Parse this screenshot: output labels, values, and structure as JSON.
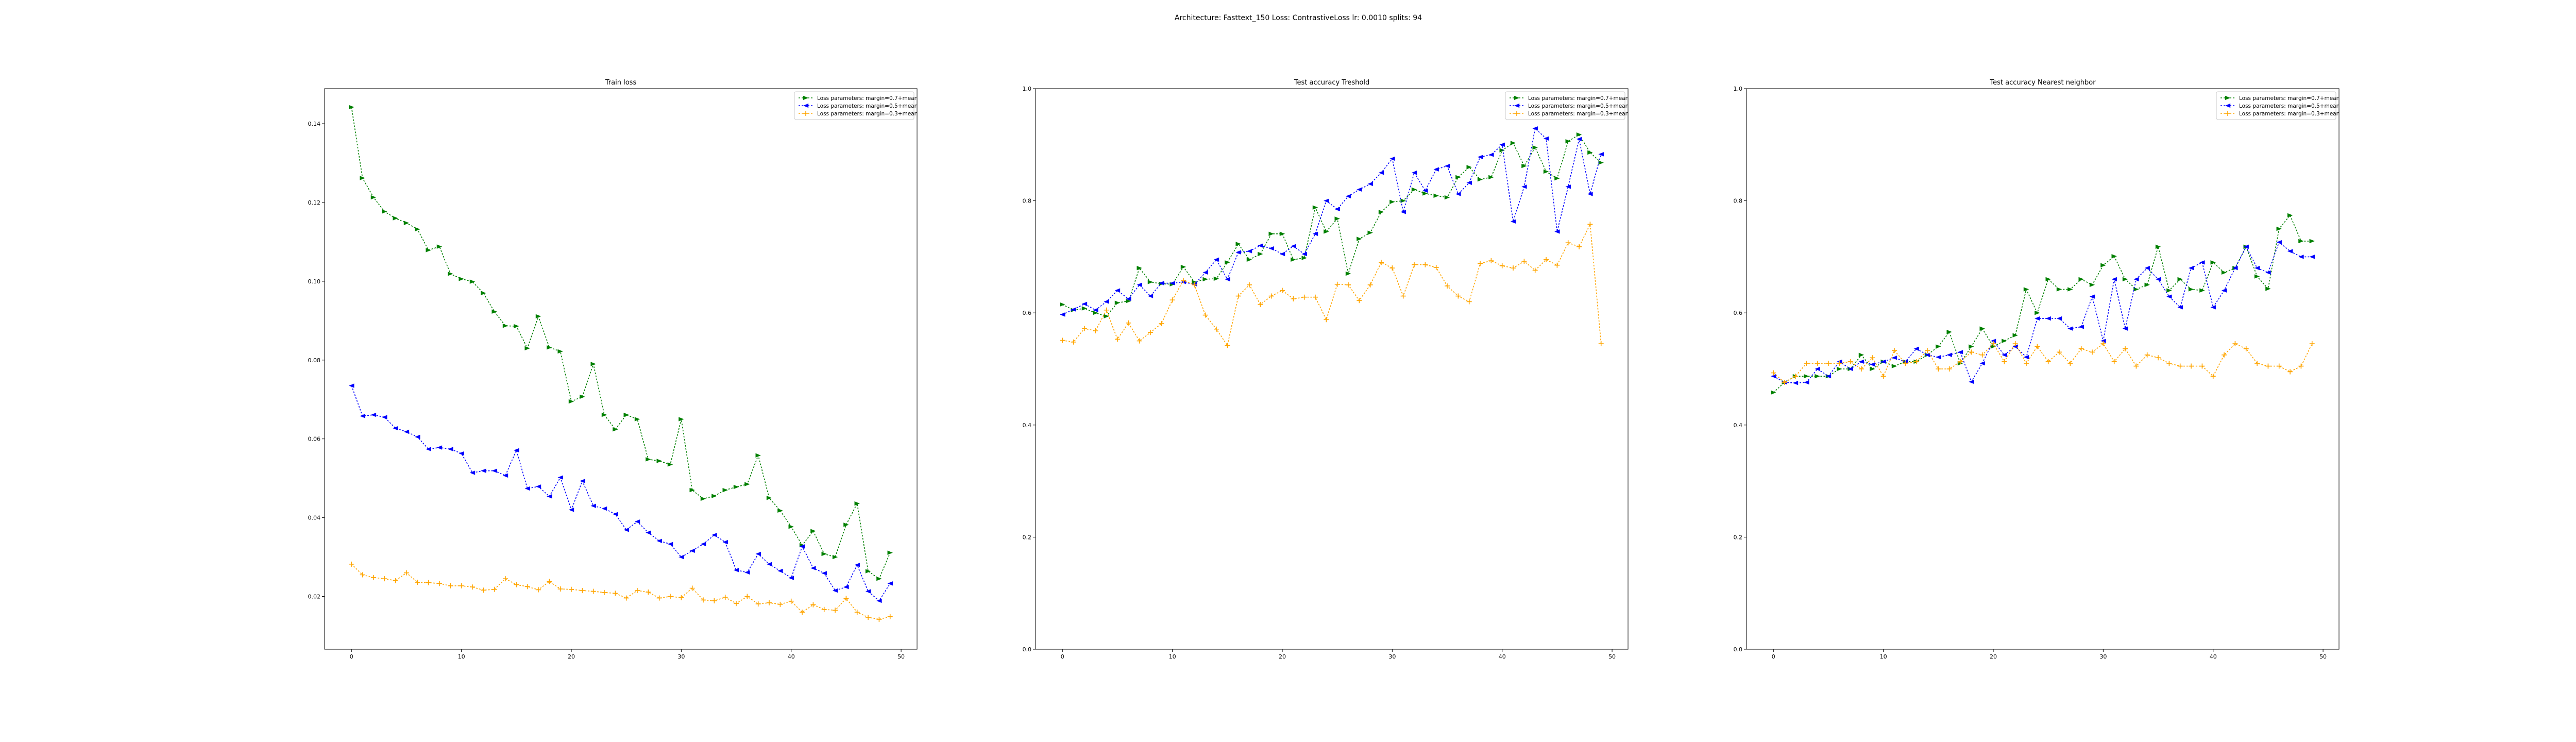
{
  "figure": {
    "suptitle": "Architecture: Fasttext_150 Loss: ContrastiveLoss lr: 0.0010 splits: 94"
  },
  "colors": {
    "green": "#008000",
    "blue": "#0000ff",
    "orange": "#ffa500"
  },
  "chart_data": [
    {
      "type": "line",
      "title": "Train loss",
      "xlabel": "",
      "ylabel": "",
      "xlim": [
        -2.45,
        51.45
      ],
      "ylim": [
        0.0066,
        0.1489
      ],
      "xticks": [
        0,
        10,
        20,
        30,
        40,
        50
      ],
      "yticks": [
        0.02,
        0.04,
        0.06,
        0.08,
        0.1,
        0.12,
        0.14
      ],
      "ytick_labels": [
        "0.02",
        "0.04",
        "0.06",
        "0.08",
        "0.10",
        "0.12",
        "0.14"
      ],
      "grid": false,
      "legend": "top-right",
      "series": [
        {
          "name": "Loss parameters: margin=0.7+mean",
          "color": "green",
          "values": [
            0.1442,
            0.1262,
            0.1213,
            0.1177,
            0.116,
            0.1148,
            0.1132,
            0.1079,
            0.1088,
            0.1019,
            0.1006,
            0.0999,
            0.097,
            0.0923,
            0.0887,
            0.0886,
            0.083,
            0.0911,
            0.0832,
            0.0822,
            0.0695,
            0.0707,
            0.079,
            0.0661,
            0.0624,
            0.0661,
            0.065,
            0.0548,
            0.0544,
            0.0535,
            0.065,
            0.047,
            0.0448,
            0.0455,
            0.047,
            0.0478,
            0.0485,
            0.0558,
            0.045,
            0.0418,
            0.0377,
            0.033,
            0.0366,
            0.0308,
            0.03,
            0.0382,
            0.0436,
            0.0264,
            0.0245,
            0.0311
          ]
        },
        {
          "name": "Loss parameters: margin=0.5+mean",
          "color": "blue",
          "values": [
            0.0735,
            0.0658,
            0.0661,
            0.0655,
            0.0627,
            0.0618,
            0.0605,
            0.0574,
            0.0578,
            0.0574,
            0.0563,
            0.0514,
            0.0519,
            0.0519,
            0.0507,
            0.0571,
            0.0474,
            0.0479,
            0.0454,
            0.0502,
            0.042,
            0.0493,
            0.043,
            0.0423,
            0.0409,
            0.0369,
            0.039,
            0.0362,
            0.0341,
            0.0333,
            0.03,
            0.0316,
            0.0333,
            0.0356,
            0.0338,
            0.0267,
            0.0261,
            0.0308,
            0.0282,
            0.0265,
            0.0247,
            0.0327,
            0.0272,
            0.0259,
            0.0215,
            0.0224,
            0.028,
            0.0213,
            0.0189,
            0.0233
          ]
        },
        {
          "name": "Loss parameters: margin=0.3+mean",
          "color": "orange",
          "values": [
            0.0282,
            0.0255,
            0.0248,
            0.0245,
            0.024,
            0.026,
            0.0236,
            0.0235,
            0.0233,
            0.0227,
            0.0227,
            0.0224,
            0.0216,
            0.0218,
            0.0245,
            0.023,
            0.0225,
            0.0217,
            0.0238,
            0.0219,
            0.0218,
            0.0215,
            0.0213,
            0.021,
            0.0208,
            0.0196,
            0.0215,
            0.0211,
            0.0196,
            0.02,
            0.0197,
            0.0221,
            0.0191,
            0.0189,
            0.0198,
            0.0182,
            0.02,
            0.0181,
            0.0184,
            0.018,
            0.0188,
            0.016,
            0.0179,
            0.0167,
            0.0165,
            0.0195,
            0.016,
            0.0147,
            0.0142,
            0.0149
          ]
        }
      ]
    },
    {
      "type": "line",
      "title": "Test accuracy Treshold",
      "xlabel": "",
      "ylabel": "",
      "xlim": [
        -2.45,
        51.45
      ],
      "ylim": [
        0.0,
        1.0
      ],
      "xticks": [
        0,
        10,
        20,
        30,
        40,
        50
      ],
      "yticks": [
        0.0,
        0.2,
        0.4,
        0.6,
        0.8,
        1.0
      ],
      "ytick_labels": [
        "0.0",
        "0.2",
        "0.4",
        "0.6",
        "0.8",
        "1.0"
      ],
      "grid": false,
      "legend": "top-right",
      "series": [
        {
          "name": "Loss parameters: margin=0.7+mean",
          "color": "green",
          "values": [
            0.615,
            0.605,
            0.608,
            0.6,
            0.594,
            0.618,
            0.621,
            0.68,
            0.655,
            0.652,
            0.651,
            0.682,
            0.655,
            0.66,
            0.661,
            0.69,
            0.723,
            0.695,
            0.705,
            0.741,
            0.741,
            0.695,
            0.698,
            0.788,
            0.745,
            0.768,
            0.67,
            0.732,
            0.743,
            0.78,
            0.798,
            0.8,
            0.82,
            0.813,
            0.809,
            0.806,
            0.842,
            0.86,
            0.838,
            0.842,
            0.89,
            0.903,
            0.862,
            0.895,
            0.852,
            0.84,
            0.906,
            0.918,
            0.886,
            0.868
          ]
        },
        {
          "name": "Loss parameters: margin=0.5+mean",
          "color": "blue",
          "values": [
            0.597,
            0.606,
            0.616,
            0.605,
            0.62,
            0.64,
            0.625,
            0.65,
            0.63,
            0.653,
            0.653,
            0.655,
            0.651,
            0.672,
            0.695,
            0.66,
            0.708,
            0.71,
            0.72,
            0.715,
            0.705,
            0.719,
            0.705,
            0.741,
            0.8,
            0.785,
            0.808,
            0.82,
            0.83,
            0.85,
            0.875,
            0.78,
            0.85,
            0.818,
            0.856,
            0.862,
            0.812,
            0.832,
            0.878,
            0.882,
            0.9,
            0.763,
            0.825,
            0.929,
            0.911,
            0.745,
            0.825,
            0.91,
            0.812,
            0.883
          ]
        },
        {
          "name": "Loss parameters: margin=0.3+mean",
          "color": "orange",
          "values": [
            0.551,
            0.548,
            0.572,
            0.568,
            0.605,
            0.553,
            0.582,
            0.55,
            0.565,
            0.581,
            0.623,
            0.658,
            0.65,
            0.596,
            0.571,
            0.542,
            0.63,
            0.65,
            0.615,
            0.63,
            0.64,
            0.625,
            0.628,
            0.628,
            0.588,
            0.651,
            0.65,
            0.622,
            0.65,
            0.69,
            0.68,
            0.63,
            0.686,
            0.686,
            0.681,
            0.648,
            0.63,
            0.62,
            0.688,
            0.693,
            0.684,
            0.68,
            0.692,
            0.676,
            0.695,
            0.685,
            0.725,
            0.718,
            0.758,
            0.545
          ]
        }
      ]
    },
    {
      "type": "line",
      "title": "Test accuracy Nearest neighbor",
      "xlabel": "",
      "ylabel": "",
      "xlim": [
        -2.45,
        51.45
      ],
      "ylim": [
        0.0,
        1.0
      ],
      "xticks": [
        0,
        10,
        20,
        30,
        40,
        50
      ],
      "yticks": [
        0.0,
        0.2,
        0.4,
        0.6,
        0.8,
        1.0
      ],
      "ytick_labels": [
        "0.0",
        "0.2",
        "0.4",
        "0.6",
        "0.8",
        "1.0"
      ],
      "grid": false,
      "legend": "top-right",
      "series": [
        {
          "name": "Loss parameters: margin=0.7+mean",
          "color": "green",
          "values": [
            0.458,
            0.476,
            0.487,
            0.487,
            0.487,
            0.487,
            0.5,
            0.5,
            0.525,
            0.5,
            0.513,
            0.505,
            0.513,
            0.513,
            0.525,
            0.54,
            0.566,
            0.51,
            0.54,
            0.572,
            0.54,
            0.55,
            0.56,
            0.642,
            0.6,
            0.66,
            0.642,
            0.642,
            0.66,
            0.65,
            0.685,
            0.701,
            0.66,
            0.642,
            0.65,
            0.718,
            0.64,
            0.66,
            0.642,
            0.64,
            0.69,
            0.672,
            0.68,
            0.718,
            0.665,
            0.643,
            0.75,
            0.774,
            0.728,
            0.728
          ]
        },
        {
          "name": "Loss parameters: margin=0.5+mean",
          "color": "blue",
          "values": [
            0.487,
            0.476,
            0.475,
            0.476,
            0.5,
            0.487,
            0.513,
            0.5,
            0.513,
            0.508,
            0.513,
            0.52,
            0.513,
            0.536,
            0.525,
            0.521,
            0.525,
            0.53,
            0.477,
            0.51,
            0.55,
            0.525,
            0.54,
            0.521,
            0.59,
            0.59,
            0.59,
            0.572,
            0.575,
            0.629,
            0.55,
            0.66,
            0.572,
            0.66,
            0.68,
            0.66,
            0.629,
            0.61,
            0.68,
            0.69,
            0.61,
            0.64,
            0.68,
            0.718,
            0.68,
            0.672,
            0.726,
            0.71,
            0.7,
            0.7
          ]
        },
        {
          "name": "Loss parameters: margin=0.3+mean",
          "color": "orange",
          "values": [
            0.493,
            0.476,
            0.487,
            0.51,
            0.51,
            0.51,
            0.51,
            0.513,
            0.5,
            0.52,
            0.487,
            0.533,
            0.51,
            0.513,
            0.533,
            0.5,
            0.5,
            0.513,
            0.53,
            0.525,
            0.545,
            0.513,
            0.545,
            0.51,
            0.54,
            0.513,
            0.53,
            0.51,
            0.536,
            0.53,
            0.545,
            0.513,
            0.536,
            0.505,
            0.525,
            0.52,
            0.51,
            0.505,
            0.505,
            0.505,
            0.487,
            0.525,
            0.545,
            0.536,
            0.51,
            0.505,
            0.505,
            0.495,
            0.505,
            0.545
          ]
        }
      ]
    }
  ]
}
